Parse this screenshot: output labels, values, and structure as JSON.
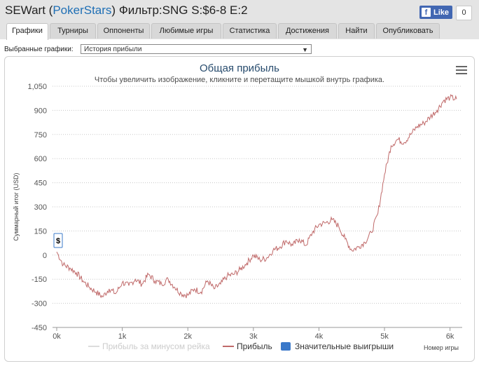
{
  "header": {
    "player": "SEWart",
    "site": "PokerStars",
    "filter": "Фильтр:SNG S:$6-8 E:2"
  },
  "facebook": {
    "like_label": "Like",
    "count": "0"
  },
  "tabs": [
    {
      "label": "Графики",
      "active": true
    },
    {
      "label": "Турниры"
    },
    {
      "label": "Оппоненты"
    },
    {
      "label": "Любимые игры"
    },
    {
      "label": "Статистика"
    },
    {
      "label": "Достижения"
    },
    {
      "label": "Найти"
    },
    {
      "label": "Опубликовать"
    }
  ],
  "chart_select": {
    "label": "Выбранные графики:",
    "value": "История прибыли"
  },
  "chart_data": {
    "type": "line",
    "title": "Общая прибыль",
    "subtitle": "Чтобы увеличить изображение, кликните и перетащите мышкой внутрь графика.",
    "ylabel": "Суммарный итог (USD)",
    "xlabel": "Номер игры",
    "ylim": [
      -450,
      1050
    ],
    "y_ticks": [
      "1,050",
      "900",
      "750",
      "600",
      "450",
      "300",
      "150",
      "0",
      "-150",
      "-300",
      "-450"
    ],
    "xlim": [
      0,
      6100
    ],
    "x_ticks": [
      "0k",
      "1k",
      "2k",
      "3k",
      "4k",
      "5k",
      "6k"
    ],
    "grid": true,
    "series": [
      {
        "name": "Прибыль за минусом рейка",
        "color": "#dcdcdc",
        "values": []
      },
      {
        "name": "Прибыль",
        "color": "#c06a6a",
        "x": [
          0,
          100,
          200,
          300,
          400,
          500,
          600,
          700,
          800,
          900,
          1000,
          1100,
          1200,
          1300,
          1400,
          1500,
          1600,
          1700,
          1800,
          1900,
          2000,
          2100,
          2200,
          2300,
          2400,
          2500,
          2600,
          2700,
          2800,
          2900,
          3000,
          3100,
          3200,
          3300,
          3400,
          3500,
          3600,
          3700,
          3800,
          3900,
          4000,
          4100,
          4200,
          4300,
          4400,
          4500,
          4600,
          4700,
          4800,
          4900,
          5000,
          5100,
          5200,
          5300,
          5400,
          5500,
          5600,
          5700,
          5800,
          5900,
          6000,
          6100
        ],
        "values": [
          20,
          -60,
          -80,
          -110,
          -160,
          -200,
          -230,
          -260,
          -210,
          -240,
          -170,
          -190,
          -150,
          -180,
          -120,
          -160,
          -180,
          -150,
          -200,
          -240,
          -250,
          -210,
          -230,
          -160,
          -210,
          -180,
          -130,
          -120,
          -90,
          -50,
          0,
          -30,
          -20,
          30,
          50,
          90,
          60,
          100,
          60,
          140,
          190,
          200,
          220,
          180,
          100,
          30,
          50,
          80,
          140,
          260,
          500,
          680,
          720,
          700,
          750,
          800,
          820,
          860,
          900,
          960,
          980,
          970
        ]
      },
      {
        "name": "Значительные выигрыши",
        "color": "#3a78c9",
        "values": []
      }
    ],
    "flag_label": "$"
  }
}
